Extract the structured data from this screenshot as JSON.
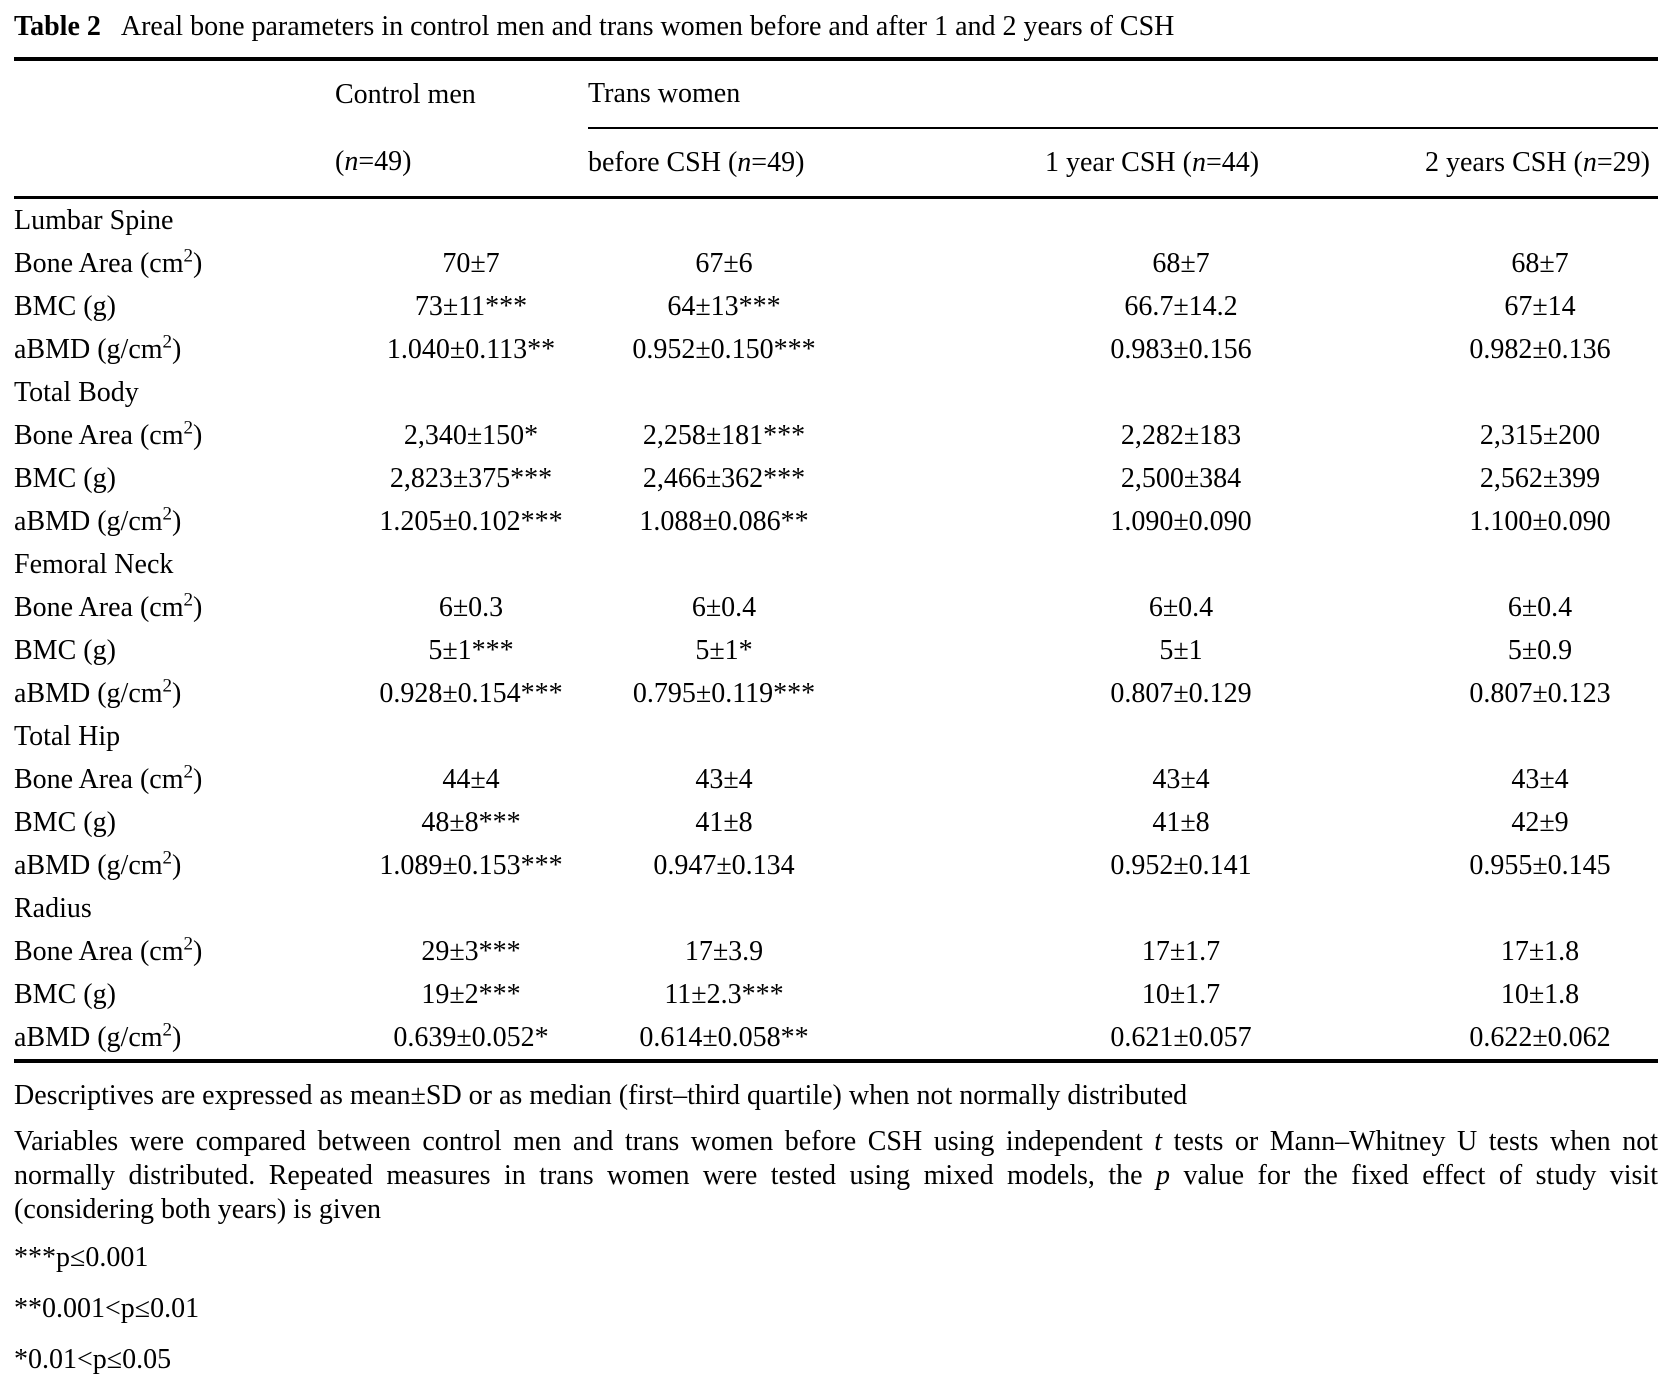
{
  "style": {
    "text_color": "#000000",
    "background": "#ffffff"
  },
  "title": {
    "label": "Table 2",
    "text": "Areal bone parameters in control men and trans women before and after 1 and 2 years of CSH"
  },
  "header": {
    "group_control": "Control men",
    "group_trans": "Trans women",
    "sub_control": "(*n*=49)",
    "sub_before": "before CSH (*n*=49)",
    "sub_year1": "1 year CSH (*n*=44)",
    "sub_year2": "2 years CSH (*n*=29)"
  },
  "rows": [
    {
      "type": "section",
      "label": "Lumbar Spine"
    },
    {
      "type": "data",
      "label": "Bone Area (cm^2^)",
      "values": [
        "70±7",
        "67±6",
        "68±7",
        "68±7"
      ]
    },
    {
      "type": "data",
      "label": "BMC (g)",
      "values": [
        "73±11***",
        "64±13***",
        "66.7±14.2",
        "67±14"
      ]
    },
    {
      "type": "data",
      "label": "aBMD (g/cm^2^)",
      "values": [
        "1.040±0.113**",
        "0.952±0.150***",
        "0.983±0.156",
        "0.982±0.136"
      ]
    },
    {
      "type": "section",
      "label": "Total Body"
    },
    {
      "type": "data",
      "label": "Bone Area (cm^2^)",
      "values": [
        "2,340±150*",
        "2,258±181***",
        "2,282±183",
        "2,315±200"
      ]
    },
    {
      "type": "data",
      "label": "BMC (g)",
      "values": [
        "2,823±375***",
        "2,466±362***",
        "2,500±384",
        "2,562±399"
      ]
    },
    {
      "type": "data",
      "label": "aBMD (g/cm^2^)",
      "values": [
        "1.205±0.102***",
        "1.088±0.086**",
        "1.090±0.090",
        "1.100±0.090"
      ]
    },
    {
      "type": "section",
      "label": "Femoral Neck"
    },
    {
      "type": "data",
      "label": "Bone Area (cm^2^)",
      "values": [
        "6±0.3",
        "6±0.4",
        "6±0.4",
        "6±0.4"
      ]
    },
    {
      "type": "data",
      "label": "BMC (g)",
      "values": [
        "5±1***",
        "5±1*",
        "5±1",
        "5±0.9"
      ]
    },
    {
      "type": "data",
      "label": "aBMD (g/cm^2^)",
      "values": [
        "0.928±0.154***",
        "0.795±0.119***",
        "0.807±0.129",
        "0.807±0.123"
      ]
    },
    {
      "type": "section",
      "label": "Total Hip"
    },
    {
      "type": "data",
      "label": "Bone Area (cm^2^)",
      "values": [
        "44±4",
        "43±4",
        "43±4",
        "43±4"
      ]
    },
    {
      "type": "data",
      "label": "BMC (g)",
      "values": [
        "48±8***",
        "41±8",
        "41±8",
        "42±9"
      ]
    },
    {
      "type": "data",
      "label": "aBMD (g/cm^2^)",
      "values": [
        "1.089±0.153***",
        "0.947±0.134",
        "0.952±0.141",
        "0.955±0.145"
      ]
    },
    {
      "type": "section",
      "label": "Radius"
    },
    {
      "type": "data",
      "label": "Bone Area (cm^2^)",
      "values": [
        "29±3***",
        "17±3.9",
        "17±1.7",
        "17±1.8"
      ]
    },
    {
      "type": "data",
      "label": "BMC (g)",
      "values": [
        "19±2***",
        "11±2.3***",
        "10±1.7",
        "10±1.8"
      ]
    },
    {
      "type": "data",
      "label": "aBMD (g/cm^2^)",
      "values": [
        "0.639±0.052*",
        "0.614±0.058**",
        "0.621±0.057",
        "0.622±0.062"
      ]
    }
  ],
  "footnotes": {
    "descriptives": "Descriptives are expressed as mean±SD or as median (first–third quartile) when not normally distributed",
    "methods": "Variables were compared between control men and trans women before CSH using independent *t* tests or Mann–Whitney U tests when not normally distributed. Repeated measures in trans women were tested using mixed models, the *p* value for the fixed effect of study visit (considering both years) is given",
    "sig3": "***p≤0.001",
    "sig2": "**0.001<p≤0.01",
    "sig1": "*0.01<p≤0.05"
  }
}
